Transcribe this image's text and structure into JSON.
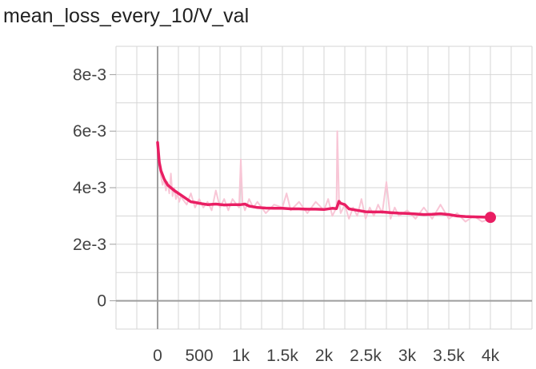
{
  "chart_data": {
    "type": "line",
    "title": "mean_loss_every_10/V_val",
    "xlabel": "",
    "ylabel": "",
    "xlim": [
      -500,
      4500
    ],
    "ylim": [
      -0.001,
      0.009
    ],
    "grid": true,
    "x_ticks": [
      0,
      500,
      1000,
      1500,
      2000,
      2500,
      3000,
      3500,
      4000
    ],
    "x_tick_labels": [
      "0",
      "500",
      "1k",
      "1.5k",
      "2k",
      "2.5k",
      "3k",
      "3.5k",
      "4k"
    ],
    "y_ticks": [
      0,
      0.002,
      0.004,
      0.006,
      0.008
    ],
    "y_tick_labels": [
      "0",
      "2e-3",
      "4e-3",
      "6e-3",
      "8e-3"
    ],
    "series": [
      {
        "role": "raw",
        "color": "#f8c6d6",
        "x": [
          0,
          20,
          40,
          60,
          80,
          100,
          120,
          140,
          160,
          180,
          200,
          220,
          240,
          260,
          280,
          300,
          350,
          400,
          450,
          500,
          550,
          600,
          650,
          700,
          750,
          800,
          850,
          900,
          950,
          980,
          1000,
          1020,
          1050,
          1100,
          1150,
          1200,
          1300,
          1400,
          1500,
          1550,
          1600,
          1700,
          1800,
          1900,
          2000,
          2050,
          2100,
          2150,
          2160,
          2180,
          2200,
          2250,
          2300,
          2350,
          2400,
          2450,
          2500,
          2550,
          2600,
          2650,
          2700,
          2750,
          2800,
          2850,
          2900,
          3000,
          3100,
          3200,
          3300,
          3400,
          3500,
          3600,
          3700,
          3800,
          3900,
          4000
        ],
        "y": [
          0.0055,
          0.0048,
          0.0044,
          0.0041,
          0.0043,
          0.0039,
          0.0042,
          0.0038,
          0.0045,
          0.0037,
          0.004,
          0.0036,
          0.0038,
          0.0035,
          0.0037,
          0.0036,
          0.0034,
          0.0038,
          0.0033,
          0.0036,
          0.0033,
          0.0035,
          0.0032,
          0.0039,
          0.0033,
          0.0036,
          0.0032,
          0.0036,
          0.0034,
          0.0033,
          0.005,
          0.0035,
          0.0032,
          0.0036,
          0.0033,
          0.0035,
          0.0031,
          0.0034,
          0.0033,
          0.0038,
          0.0032,
          0.0035,
          0.0031,
          0.0035,
          0.0032,
          0.0036,
          0.003,
          0.0033,
          0.006,
          0.0036,
          0.0031,
          0.0034,
          0.0029,
          0.0033,
          0.003,
          0.0036,
          0.0029,
          0.0033,
          0.003,
          0.0034,
          0.0031,
          0.0042,
          0.0029,
          0.0033,
          0.003,
          0.0032,
          0.0029,
          0.0033,
          0.0029,
          0.0034,
          0.0029,
          0.0031,
          0.0028,
          0.003,
          0.0028,
          0.0029
        ]
      },
      {
        "role": "smoothed",
        "color": "#e91e63",
        "x": [
          0,
          20,
          40,
          80,
          120,
          160,
          200,
          250,
          300,
          350,
          400,
          450,
          500,
          600,
          700,
          800,
          900,
          1000,
          1050,
          1100,
          1200,
          1300,
          1400,
          1500,
          1600,
          1700,
          1800,
          1900,
          2000,
          2100,
          2150,
          2180,
          2200,
          2250,
          2300,
          2400,
          2500,
          2600,
          2700,
          2800,
          2900,
          3000,
          3100,
          3200,
          3300,
          3400,
          3500,
          3600,
          3700,
          3800,
          3900,
          4000
        ],
        "y": [
          0.0056,
          0.0049,
          0.0046,
          0.0043,
          0.0041,
          0.004,
          0.0039,
          0.0038,
          0.0037,
          0.0036,
          0.0035,
          0.00348,
          0.00345,
          0.0034,
          0.00342,
          0.00339,
          0.0034,
          0.0034,
          0.00342,
          0.00335,
          0.0033,
          0.00328,
          0.00327,
          0.00327,
          0.00325,
          0.00325,
          0.00324,
          0.00324,
          0.00323,
          0.00327,
          0.00326,
          0.00352,
          0.00345,
          0.0034,
          0.00325,
          0.0032,
          0.00315,
          0.00314,
          0.00314,
          0.00312,
          0.0031,
          0.00309,
          0.00307,
          0.00305,
          0.00306,
          0.00308,
          0.00305,
          0.003,
          0.00298,
          0.00297,
          0.00296,
          0.00295
        ]
      }
    ]
  }
}
